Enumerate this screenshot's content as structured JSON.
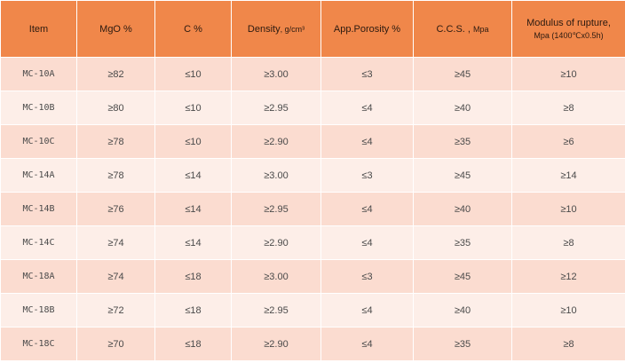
{
  "headers": [
    {
      "main": "Item",
      "sub": ""
    },
    {
      "main": "MgO  %",
      "sub": ""
    },
    {
      "main": "C %",
      "sub": ""
    },
    {
      "main": "Density",
      "sub": ", g/cm³"
    },
    {
      "main": "App.Porosity %",
      "sub": ""
    },
    {
      "main": "C.C.S. ,",
      "sub": "Mpa"
    },
    {
      "main": "Modulus of rupture,",
      "sub": "Mpa (1400℃x0.5h)"
    }
  ],
  "rows": [
    [
      "MC-10A",
      "≥82",
      "≤10",
      "≥3.00",
      "≤3",
      "≥45",
      "≥10"
    ],
    [
      "MC-10B",
      "≥80",
      "≤10",
      "≥2.95",
      "≤4",
      "≥40",
      "≥8"
    ],
    [
      "MC-10C",
      "≥78",
      "≤10",
      "≥2.90",
      "≤4",
      "≥35",
      "≥6"
    ],
    [
      "MC-14A",
      "≥78",
      "≤14",
      "≥3.00",
      "≤3",
      "≥45",
      "≥14"
    ],
    [
      "MC-14B",
      "≥76",
      "≤14",
      "≥2.95",
      "≤4",
      "≥40",
      "≥10"
    ],
    [
      "MC-14C",
      "≥74",
      "≤14",
      "≥2.90",
      "≤4",
      "≥35",
      "≥8"
    ],
    [
      "MC-18A",
      "≥74",
      "≤18",
      "≥3.00",
      "≤3",
      "≥45",
      "≥12"
    ],
    [
      "MC-18B",
      "≥72",
      "≤18",
      "≥2.95",
      "≤4",
      "≥40",
      "≥10"
    ],
    [
      "MC-18C",
      "≥70",
      "≤18",
      "≥2.90",
      "≤4",
      "≥35",
      "≥8"
    ]
  ]
}
